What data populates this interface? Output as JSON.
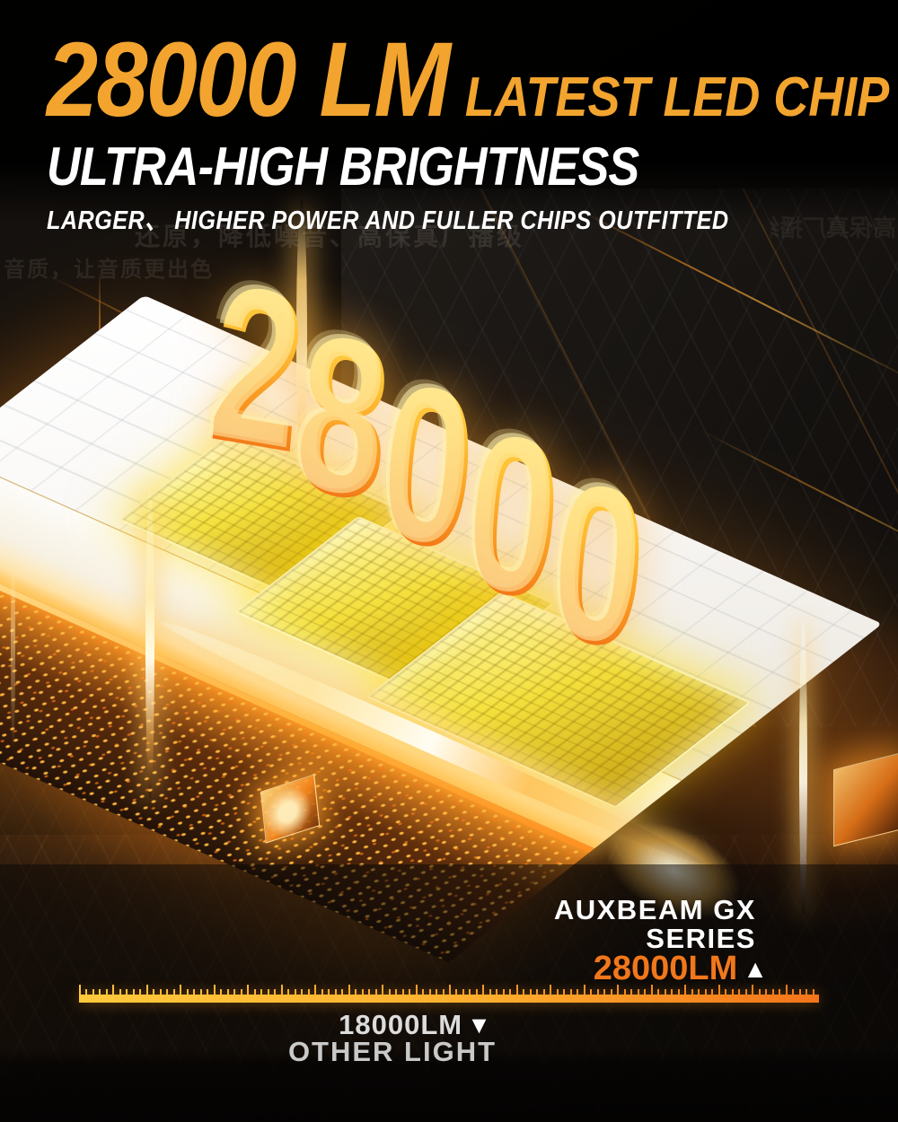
{
  "header": {
    "headline_number": "28000 LM",
    "headline_suffix": "LATEST LED CHIP",
    "title": "ULTRA-HIGH BRIGHTNESS",
    "subtitle": "LARGER、 HIGHER POWER AND FULLER CHIPS OUTFITTED"
  },
  "hero": {
    "number": "28000"
  },
  "background_text": {
    "line1": "还原，降低噪音、高保真厂播级",
    "line2": "音质，让音质更出色",
    "mirrored_fragment": "高保真厂播级"
  },
  "comparison": {
    "brand_line1": "AUXBEAM GX",
    "brand_line2": "SERIES",
    "brand_value": "28000LM",
    "up_triangle": "▲",
    "other_value": "18000LM",
    "down_triangle": "▼",
    "other_label": "OTHER LIGHT",
    "ruler": {
      "tick_count": 110,
      "tall_every": 5,
      "color_start": "#FFC93C",
      "color_end": "#F5741A"
    }
  },
  "colors": {
    "accent_orange": "#F2A42E",
    "value_orange": "#F2771B",
    "digit_gradient_top": "#FFEA5F",
    "digit_gradient_bottom": "#EC5B10",
    "glow_orange": "#FF8C1A",
    "muted_text": "#C9C9C9"
  }
}
